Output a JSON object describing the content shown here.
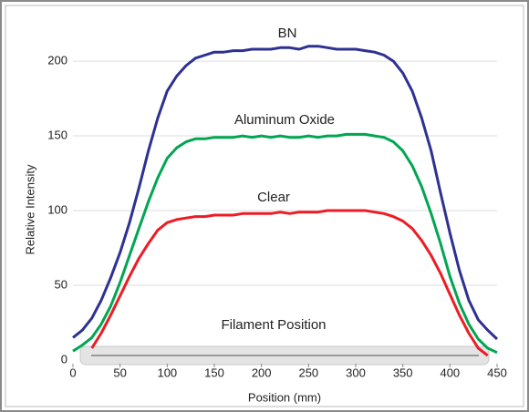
{
  "chart_data": {
    "type": "line",
    "x_label": "Position (mm)",
    "y_label": "Relative Intensity",
    "annotations": [
      "BN",
      "Aluminum Oxide",
      "Clear",
      "Filament Position"
    ],
    "x": [
      0,
      10,
      20,
      30,
      40,
      50,
      60,
      70,
      80,
      90,
      100,
      110,
      120,
      130,
      140,
      150,
      160,
      170,
      180,
      190,
      200,
      210,
      220,
      230,
      240,
      250,
      260,
      270,
      280,
      290,
      300,
      310,
      320,
      330,
      340,
      350,
      360,
      370,
      380,
      390,
      400,
      410,
      420,
      430,
      440,
      450
    ],
    "series": [
      {
        "name": "BN",
        "color": "#2e3192",
        "values": [
          15,
          20,
          28,
          40,
          55,
          72,
          92,
          115,
          140,
          162,
          180,
          190,
          197,
          202,
          204,
          206,
          206,
          207,
          207,
          208,
          208,
          208,
          209,
          209,
          208,
          210,
          210,
          209,
          208,
          208,
          208,
          207,
          206,
          204,
          200,
          192,
          180,
          162,
          140,
          112,
          85,
          60,
          40,
          27,
          20,
          14
        ]
      },
      {
        "name": "Aluminum Oxide",
        "color": "#00a651",
        "values": [
          6,
          10,
          15,
          24,
          36,
          52,
          70,
          88,
          106,
          122,
          135,
          142,
          146,
          148,
          148,
          149,
          149,
          149,
          150,
          149,
          150,
          149,
          150,
          149,
          149,
          150,
          149,
          150,
          150,
          151,
          151,
          151,
          150,
          149,
          146,
          140,
          130,
          116,
          98,
          78,
          56,
          38,
          24,
          14,
          8,
          5
        ]
      },
      {
        "name": "Clear",
        "color": "#ed1c24",
        "values": [
          null,
          null,
          8,
          18,
          30,
          43,
          56,
          68,
          78,
          87,
          92,
          94,
          95,
          96,
          96,
          97,
          97,
          97,
          98,
          98,
          98,
          98,
          99,
          98,
          99,
          99,
          99,
          100,
          100,
          100,
          100,
          100,
          99,
          98,
          96,
          93,
          88,
          80,
          70,
          58,
          44,
          30,
          18,
          8,
          3,
          null
        ]
      }
    ],
    "xlim": [
      0,
      450
    ],
    "xticks": [
      0,
      50,
      100,
      150,
      200,
      250,
      300,
      350,
      400,
      450
    ],
    "ylim": [
      0,
      222
    ],
    "yticks": [
      0,
      50,
      100,
      150,
      200
    ],
    "grid": true
  }
}
